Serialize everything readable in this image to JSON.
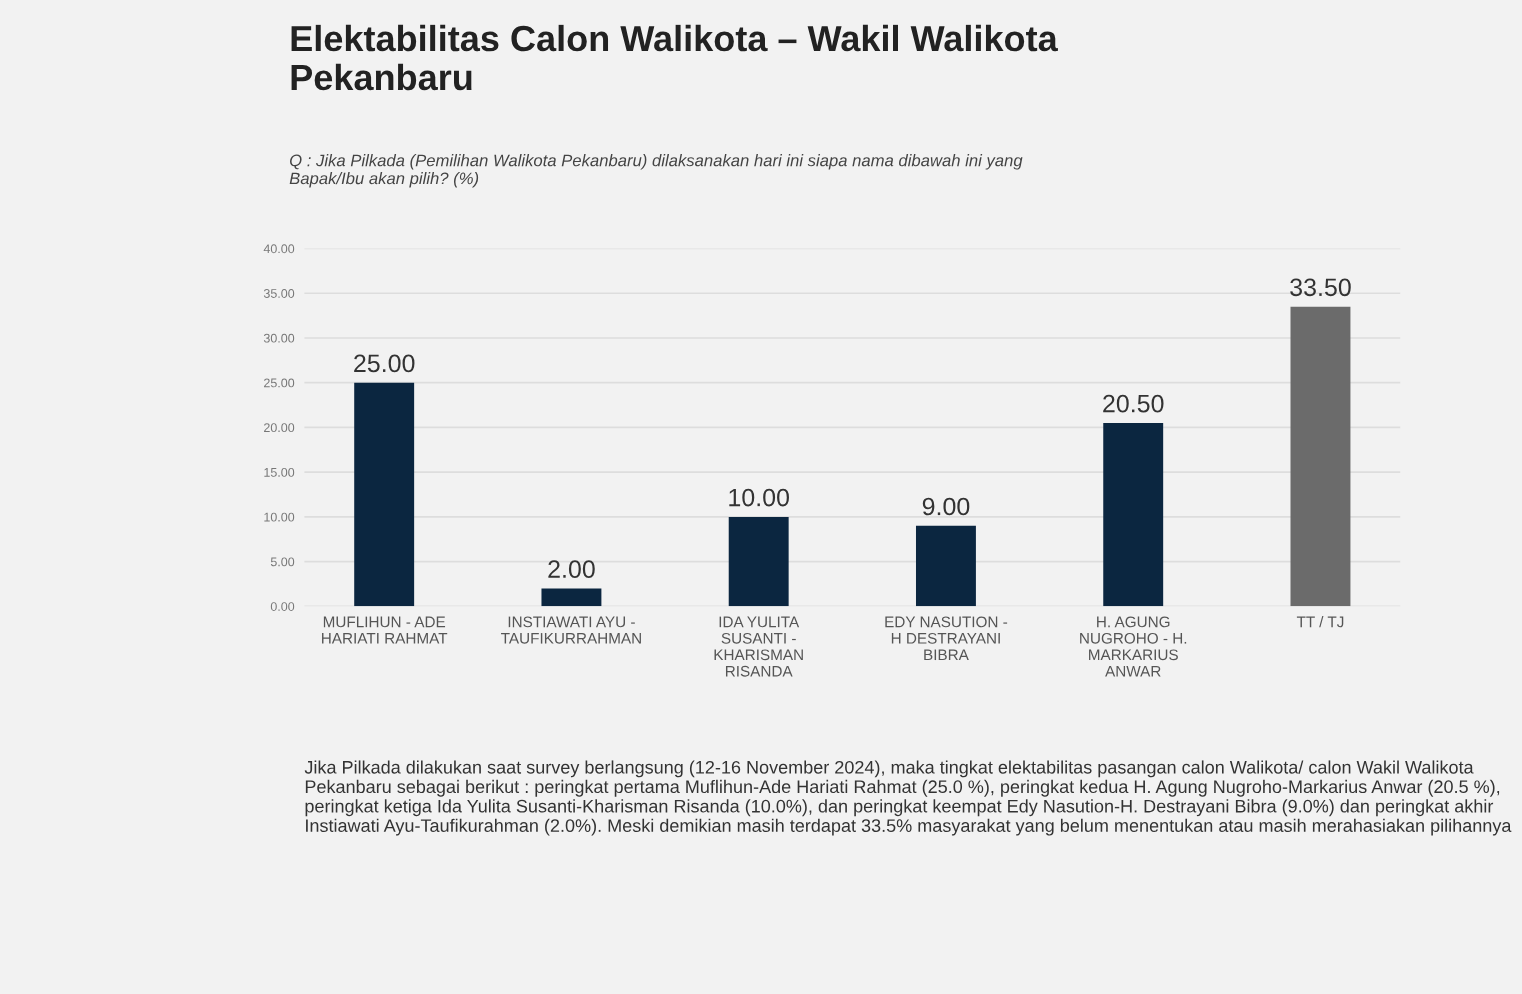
{
  "chart_data": {
    "type": "bar",
    "title": "Elektabilitas Calon Walikota – Wakil Walikota\nPekanbaru",
    "subtitle": "Q : Jika Pilkada (Pemilihan Walikota Pekanbaru) dilaksanakan hari ini siapa nama dibawah ini yang\nBapak/Ibu akan pilih? (%)",
    "categories": [
      "MUFLIHUN - ADE\nHARIATI RAHMAT",
      "INSTIAWATI AYU -\nTAUFIKURRAHMAN",
      "IDA YULITA\nSUSANTI -\nKHARISMAN\nRISANDA",
      "EDY NASUTION -\nH DESTRAYANI\nBIBRA",
      "H. AGUNG\nNUGROHO - H.\nMARKARIUS\nANWAR",
      "TT / TJ"
    ],
    "values": [
      25,
      2,
      10,
      9,
      20.5,
      33.5
    ],
    "value_labels": [
      "25.00",
      "2.00",
      "10.00",
      "9.00",
      "20.50",
      "33.50"
    ],
    "colors": [
      "#0b2640",
      "#0b2640",
      "#0b2640",
      "#0b2640",
      "#0b2640",
      "#6b6b6b"
    ],
    "ylim": [
      0,
      40
    ],
    "yticks": [
      {
        "value": 0,
        "label": "0.00"
      },
      {
        "value": 5,
        "label": "5.00"
      },
      {
        "value": 10,
        "label": "10.00"
      },
      {
        "value": 15,
        "label": "15.00"
      },
      {
        "value": 20,
        "label": "20.00"
      },
      {
        "value": 25,
        "label": "25.00"
      },
      {
        "value": 30,
        "label": "30.00"
      },
      {
        "value": 35,
        "label": "35.00"
      },
      {
        "value": 40,
        "label": "40.00"
      }
    ],
    "grid": "y",
    "annotations": [
      "Jika Pilkada dilakukan saat survey berlangsung (12-16 November 2024), maka tingkat elektabilitas pasangan calon Walikota/ calon Wakil Walikota Pekanbaru sebagai berikut : peringkat pertama Muflihun-Ade Hariati Rahmat (25.0 %), peringkat kedua H. Agung Nugroho-Markarius Anwar (20.5 %), peringkat ketiga Ida Yulita Susanti-Kharisman Risanda (10.0%), dan peringkat keempat Edy Nasution-H. Destrayani Bibra (9.0%) dan peringkat akhir Instiawati Ayu-Taufikurahman (2.0%). Meski demikian masih terdapat 33.5% masyarakat yang belum menentukan atau masih merahasiakan pilihannya"
    ]
  }
}
